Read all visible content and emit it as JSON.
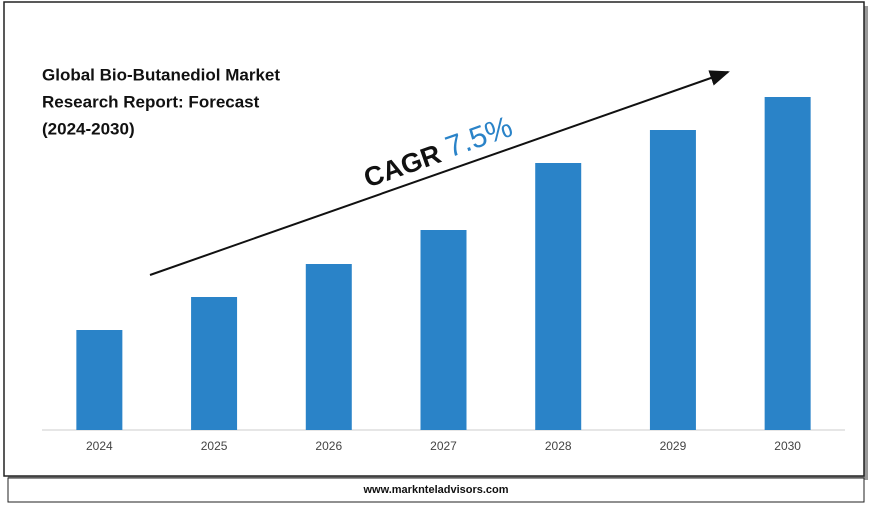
{
  "chart_data": {
    "type": "bar",
    "title": [
      "Global Bio-Butanediol Market",
      "Research Report: Forecast",
      "(2024-2030)"
    ],
    "annotation": {
      "label": "CAGR",
      "value": "7.5%"
    },
    "categories": [
      "2024",
      "2025",
      "2026",
      "2027",
      "2028",
      "2029",
      "2030"
    ],
    "values": [
      100,
      133,
      166,
      200,
      267,
      300,
      333
    ],
    "color": "#2a83c8",
    "footer": "www.marknteladvisors.com"
  }
}
